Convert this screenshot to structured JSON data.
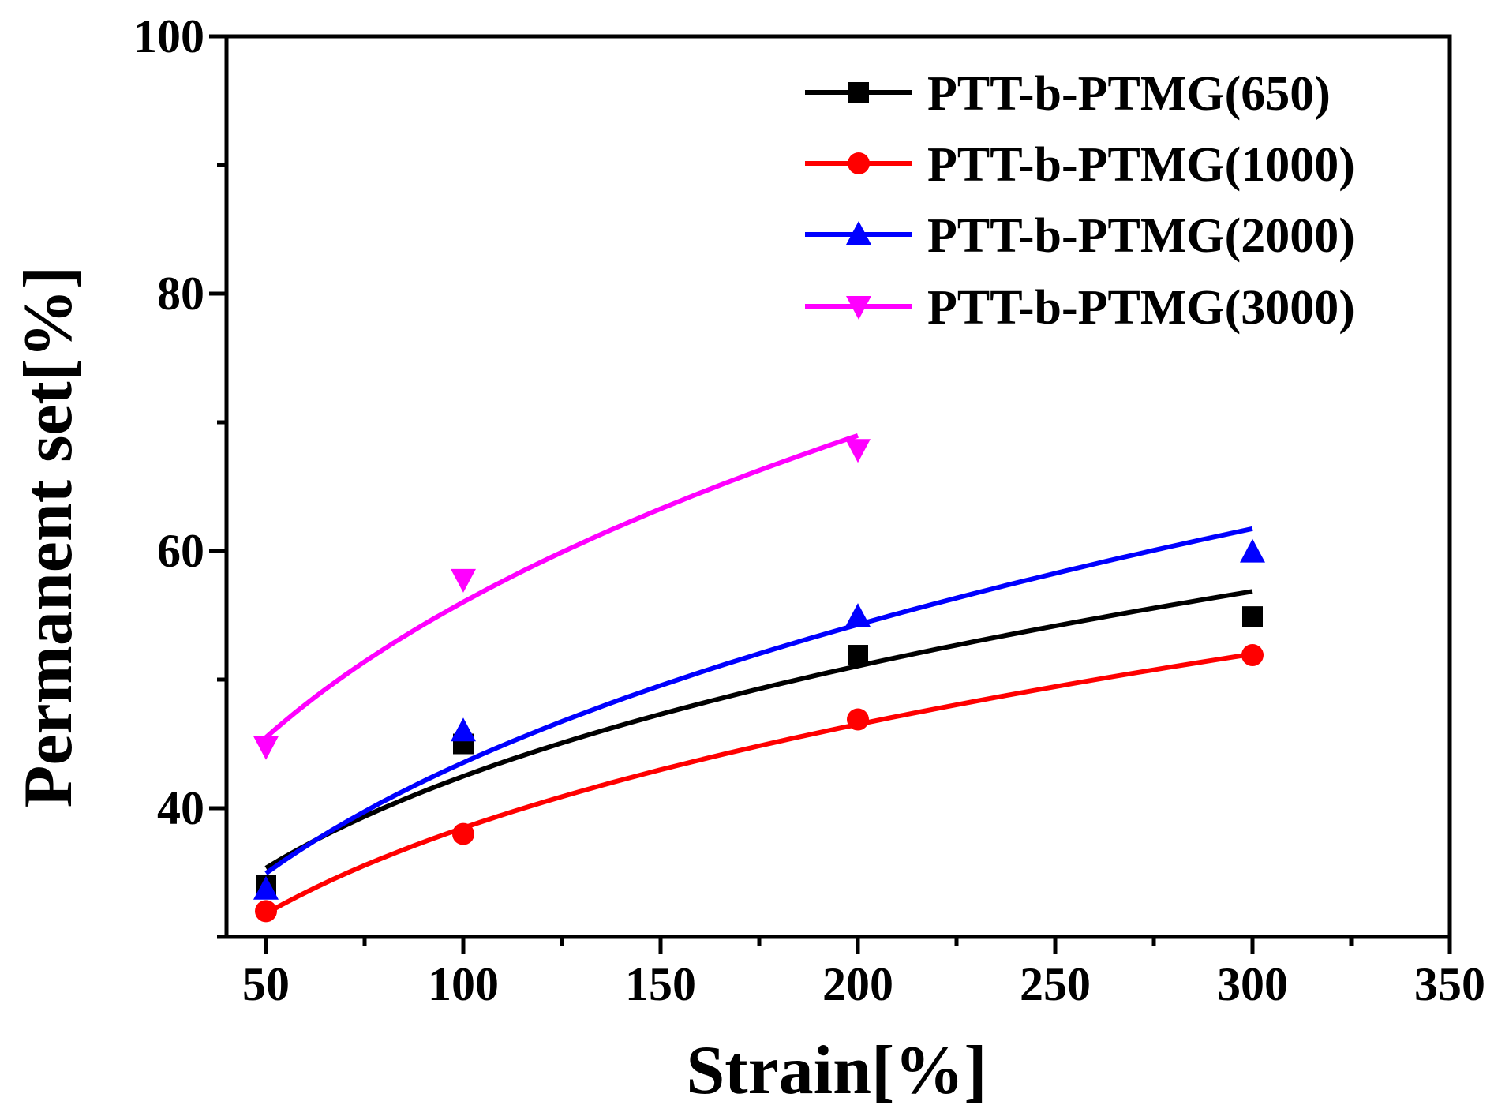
{
  "chart_data": {
    "type": "line",
    "title": "",
    "xlabel": "Strain[%]",
    "ylabel": "Permanent set[%]",
    "xlim": [
      40,
      350
    ],
    "ylim": [
      30,
      100
    ],
    "xticks": [
      50,
      100,
      150,
      200,
      250,
      300,
      350
    ],
    "yticks": [
      40,
      60,
      80,
      100
    ],
    "grid": false,
    "legend_position": "top-right",
    "series": [
      {
        "name": "PTT-b-PTMG(650)",
        "color": "#000000",
        "marker": "square",
        "x": [
          50,
          100,
          200,
          300
        ],
        "y": [
          34.0,
          45.0,
          51.9,
          54.9
        ]
      },
      {
        "name": "PTT-b-PTMG(1000)",
        "color": "#ff0000",
        "marker": "circle",
        "x": [
          50,
          100,
          200,
          300
        ],
        "y": [
          32.0,
          38.0,
          46.9,
          51.9
        ]
      },
      {
        "name": "PTT-b-PTMG(2000)",
        "color": "#0000ff",
        "marker": "triangle-up",
        "x": [
          50,
          100,
          200,
          300
        ],
        "y": [
          33.7,
          46.0,
          54.9,
          59.9
        ]
      },
      {
        "name": "PTT-b-PTMG(3000)",
        "color": "#ff00ff",
        "marker": "triangle-down",
        "x": [
          50,
          100,
          200
        ],
        "y": [
          44.8,
          57.8,
          67.9
        ]
      }
    ]
  }
}
